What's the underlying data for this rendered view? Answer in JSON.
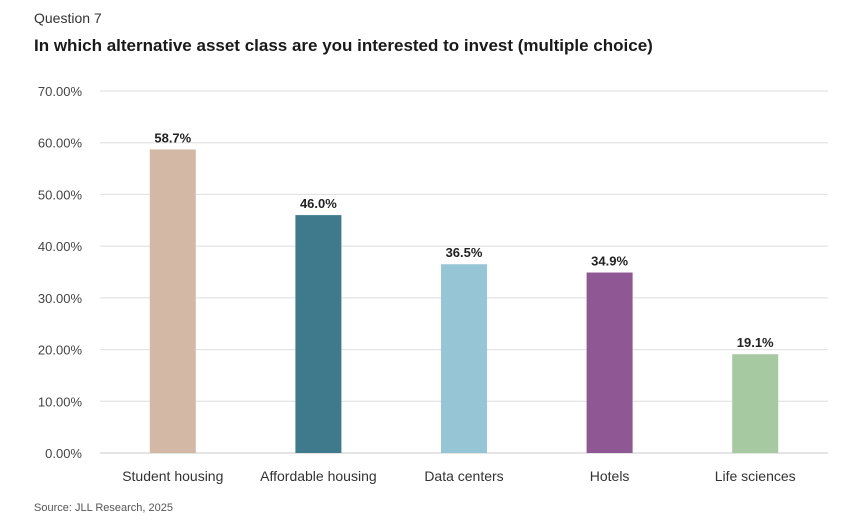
{
  "header": {
    "question": "Question 7",
    "title": "In which alternative asset class are you interested to invest (multiple choice)"
  },
  "footer": {
    "source": "Source: JLL Research, 2025"
  },
  "chart_data": {
    "type": "bar",
    "title": "In which alternative asset class are you interested to invest (multiple choice)",
    "categories": [
      "Student housing",
      "Affordable housing",
      "Data centers",
      "Hotels",
      "Life sciences"
    ],
    "values": [
      58.7,
      46.0,
      36.5,
      34.9,
      19.1
    ],
    "data_labels": [
      "58.7%",
      "46.0%",
      "36.5%",
      "34.9%",
      "19.1%"
    ],
    "colors": [
      "#d3b8a6",
      "#3f7a8c",
      "#96c6d6",
      "#8f5895",
      "#a6c9a2"
    ],
    "ylim": [
      0,
      70
    ],
    "yticks": [
      0,
      10,
      20,
      30,
      40,
      50,
      60,
      70
    ],
    "ytick_labels": [
      "0.00%",
      "10.00%",
      "20.00%",
      "30.00%",
      "40.00%",
      "50.00%",
      "60.00%",
      "70.00%"
    ],
    "grid": true,
    "legend": "none"
  }
}
